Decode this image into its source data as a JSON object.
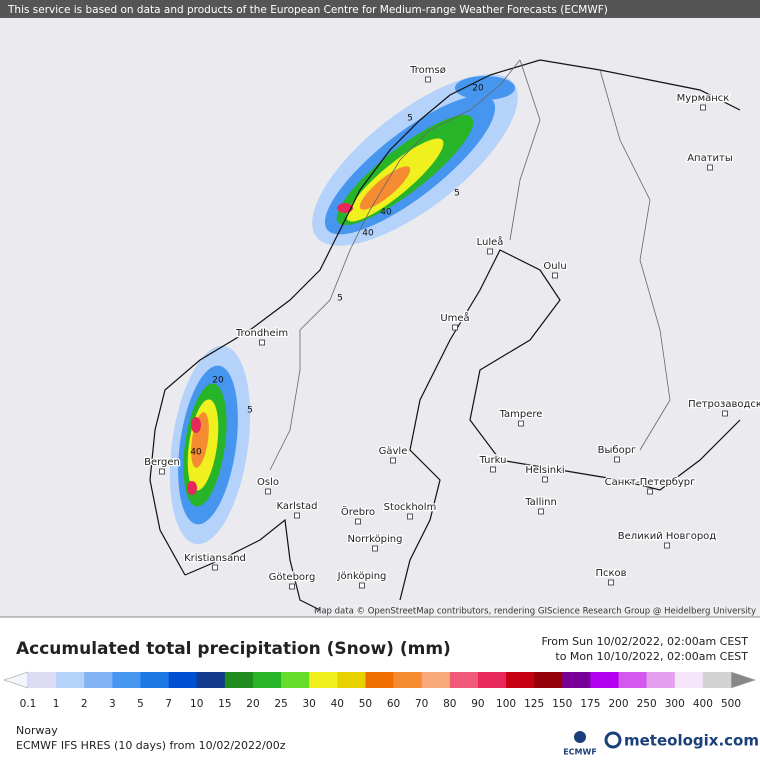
{
  "header": {
    "banner": "This service is based on data and products of the European Centre for Medium-range Weather Forecasts (ECMWF)"
  },
  "map": {
    "attribution": "Map data © OpenStreetMap contributors, rendering GIScience Research Group @ Heidelberg University",
    "cities": [
      "Tromsø",
      "Мурманск",
      "Апатиты",
      "Luleå",
      "Oulu",
      "Umeå",
      "Trondheim",
      "Bergen",
      "Oslo",
      "Karlstad",
      "Örebro",
      "Stockholm",
      "Norrköping",
      "Jönköping",
      "Göteborg",
      "Kristiansand",
      "Gävle",
      "Turku",
      "Helsinki",
      "Tallinn",
      "Tampere",
      "Выборг",
      "Санкт-Петербург",
      "Петрозаводск",
      "Великий Новгород",
      "Псков"
    ],
    "contour_labels": [
      "20",
      "5",
      "40",
      "40",
      "5",
      "5",
      "20",
      "5",
      "40"
    ]
  },
  "footer": {
    "title": "Accumulated total precipitation (Snow) (mm)",
    "period_from": "From Sun 10/02/2022, 02:00am CEST",
    "period_to": "to Mon 10/10/2022, 02:00am CEST",
    "region": "Norway",
    "model": "ECMWF IFS HRES (10 days) from 10/02/2022/00z",
    "logo_ecmwf": "ECMWF",
    "logo_meteologix": "meteologix.com"
  },
  "legend": {
    "labels": [
      "0.1",
      "1",
      "2",
      "3",
      "5",
      "7",
      "10",
      "15",
      "20",
      "25",
      "30",
      "40",
      "50",
      "60",
      "70",
      "80",
      "90",
      "100",
      "125",
      "150",
      "175",
      "200",
      "250",
      "300",
      "400",
      "500"
    ],
    "colors": [
      "#dcdcf5",
      "#b4d2fa",
      "#82b4f5",
      "#4696f0",
      "#1e78e6",
      "#0050d2",
      "#143c8c",
      "#1e8c1e",
      "#28b428",
      "#64dc28",
      "#f0f01e",
      "#e6d200",
      "#f06e00",
      "#f58c32",
      "#faaa78",
      "#f05a78",
      "#e6285a",
      "#c80014",
      "#96000a",
      "#780096",
      "#b400f0",
      "#d25af0",
      "#e6a0f0",
      "#f5e6fa",
      "#d2d2d2"
    ]
  }
}
